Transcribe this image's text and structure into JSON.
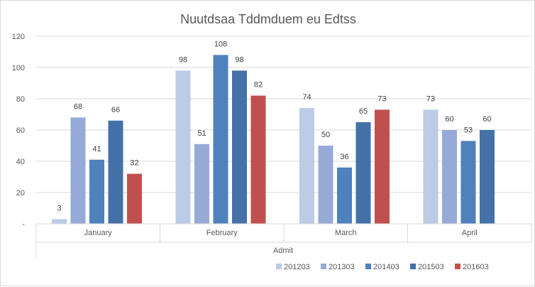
{
  "chart_data": {
    "type": "bar",
    "title": "Nuutdsaa Tddmduem eu Edtss",
    "xlabel": "Admit",
    "ylabel": "",
    "ylim": [
      0,
      120
    ],
    "yticks": [
      "-",
      "20",
      "40",
      "60",
      "80",
      "100",
      "120"
    ],
    "categories": [
      "January",
      "February",
      "March",
      "April"
    ],
    "series": [
      {
        "name": "201203",
        "color": "#bccbe6",
        "values": [
          3,
          98,
          74,
          73
        ]
      },
      {
        "name": "201303",
        "color": "#95aad6",
        "values": [
          68,
          51,
          50,
          60
        ]
      },
      {
        "name": "201403",
        "color": "#4f81bd",
        "values": [
          41,
          108,
          36,
          53
        ]
      },
      {
        "name": "201503",
        "color": "#4472a8",
        "values": [
          66,
          98,
          65,
          60
        ]
      },
      {
        "name": "201603",
        "color": "#c0504d",
        "values": [
          32,
          82,
          73,
          null
        ]
      }
    ],
    "grid": true,
    "legend": "bottom-right"
  }
}
